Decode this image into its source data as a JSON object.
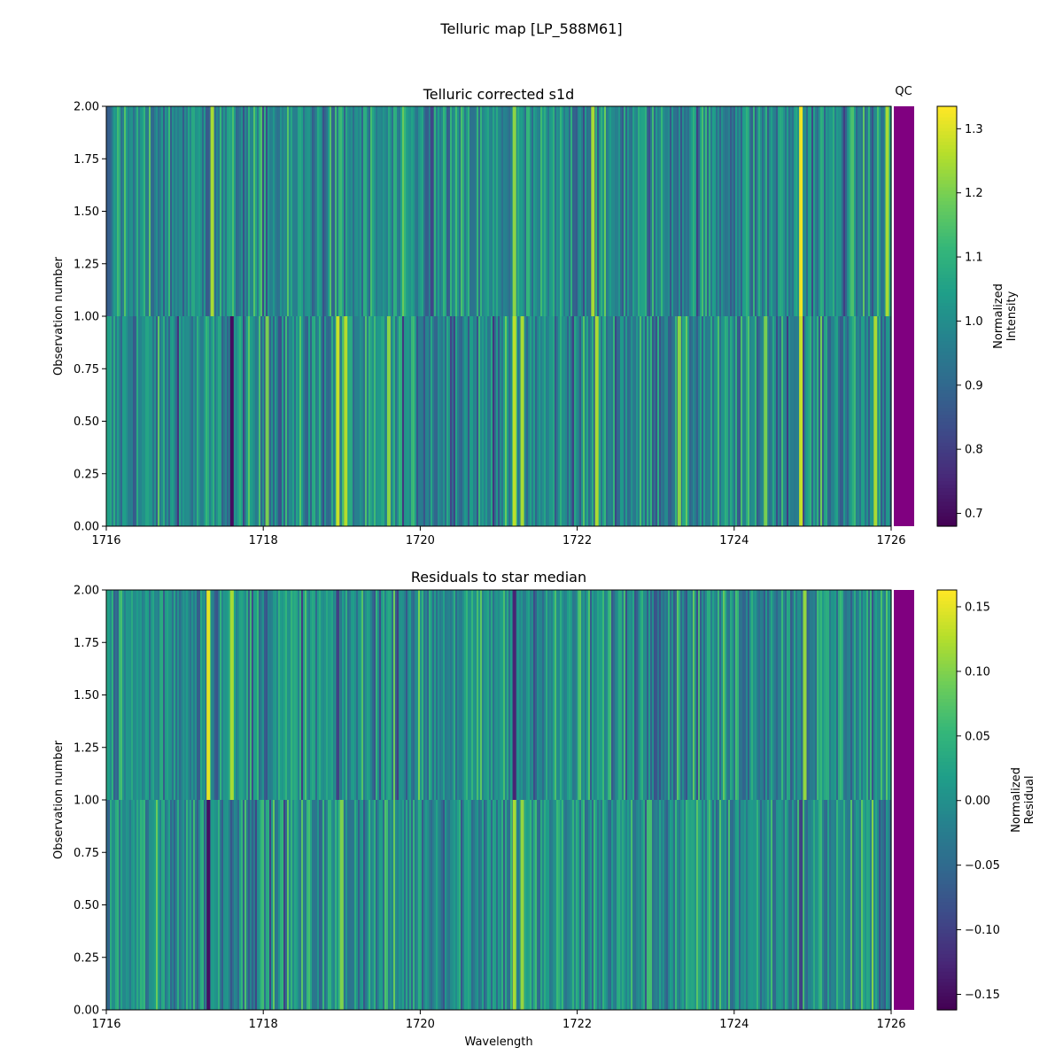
{
  "suptitle": "Telluric map [LP_588M61]",
  "qc_label": "QC",
  "qc_color": "#800080",
  "chart_data": [
    {
      "type": "heatmap",
      "title": "Telluric corrected s1d",
      "xlabel": "",
      "ylabel": "Observation number",
      "xlim": [
        1716,
        1726
      ],
      "ylim": [
        0.0,
        2.0
      ],
      "xticks": [
        "1716",
        "1718",
        "1720",
        "1722",
        "1724",
        "1726"
      ],
      "yticks": [
        "0.00",
        "0.25",
        "0.50",
        "0.75",
        "1.00",
        "1.25",
        "1.50",
        "1.75",
        "2.00"
      ],
      "rows": [
        [
          0.0,
          1.0
        ],
        [
          1.0,
          2.0
        ]
      ],
      "colormap": "viridis",
      "colorbar": {
        "label": "Normalized\nIntensity",
        "range": [
          0.68,
          1.335
        ],
        "ticks": [
          "0.7",
          "0.8",
          "0.9",
          "1.0",
          "1.1",
          "1.2",
          "1.3"
        ]
      },
      "features": [
        {
          "wavelength": 1717.6,
          "row": 0,
          "value": 0.7
        },
        {
          "wavelength": 1718.05,
          "row": 0,
          "value": 1.2
        },
        {
          "wavelength": 1718.95,
          "row": 0,
          "value": 1.28
        },
        {
          "wavelength": 1719.05,
          "row": 0,
          "value": 1.26
        },
        {
          "wavelength": 1719.6,
          "row": 0,
          "value": 1.22
        },
        {
          "wavelength": 1721.2,
          "row": 0,
          "value": 1.27
        },
        {
          "wavelength": 1721.3,
          "row": 0,
          "value": 1.25
        },
        {
          "wavelength": 1722.25,
          "row": 0,
          "value": 1.25
        },
        {
          "wavelength": 1723.3,
          "row": 0,
          "value": 1.22
        },
        {
          "wavelength": 1724.4,
          "row": 0,
          "value": 1.2
        },
        {
          "wavelength": 1724.85,
          "row": 0,
          "value": 1.28
        },
        {
          "wavelength": 1725.8,
          "row": 0,
          "value": 1.25
        },
        {
          "wavelength": 1717.35,
          "row": 1,
          "value": 1.25
        },
        {
          "wavelength": 1720.15,
          "row": 1,
          "value": 0.82
        },
        {
          "wavelength": 1721.2,
          "row": 1,
          "value": 1.22
        },
        {
          "wavelength": 1722.2,
          "row": 1,
          "value": 1.25
        },
        {
          "wavelength": 1724.85,
          "row": 1,
          "value": 1.32
        },
        {
          "wavelength": 1725.95,
          "row": 1,
          "value": 1.25
        }
      ]
    },
    {
      "type": "heatmap",
      "title": "Residuals to star median",
      "xlabel": "Wavelength",
      "ylabel": "Observation number",
      "xlim": [
        1716,
        1726
      ],
      "ylim": [
        0.0,
        2.0
      ],
      "xticks": [
        "1716",
        "1718",
        "1720",
        "1722",
        "1724",
        "1726"
      ],
      "yticks": [
        "0.00",
        "0.25",
        "0.50",
        "0.75",
        "1.00",
        "1.25",
        "1.50",
        "1.75",
        "2.00"
      ],
      "rows": [
        [
          0.0,
          1.0
        ],
        [
          1.0,
          2.0
        ]
      ],
      "colormap": "viridis",
      "colorbar": {
        "label": "Normalized\nResidual",
        "range": [
          -0.162,
          0.163
        ],
        "ticks": [
          "−0.15",
          "−0.10",
          "−0.05",
          "0.00",
          "0.05",
          "0.10",
          "0.15"
        ]
      },
      "features": [
        {
          "wavelength": 1717.3,
          "row": 0,
          "value": -0.15
        },
        {
          "wavelength": 1719.0,
          "row": 0,
          "value": 0.1
        },
        {
          "wavelength": 1721.2,
          "row": 0,
          "value": 0.12
        },
        {
          "wavelength": 1721.3,
          "row": 0,
          "value": 0.11
        },
        {
          "wavelength": 1724.85,
          "row": 0,
          "value": -0.1
        },
        {
          "wavelength": 1717.3,
          "row": 1,
          "value": 0.15
        },
        {
          "wavelength": 1717.6,
          "row": 1,
          "value": 0.12
        },
        {
          "wavelength": 1718.95,
          "row": 1,
          "value": -0.1
        },
        {
          "wavelength": 1721.2,
          "row": 1,
          "value": -0.13
        },
        {
          "wavelength": 1724.9,
          "row": 1,
          "value": 0.11
        }
      ]
    }
  ]
}
